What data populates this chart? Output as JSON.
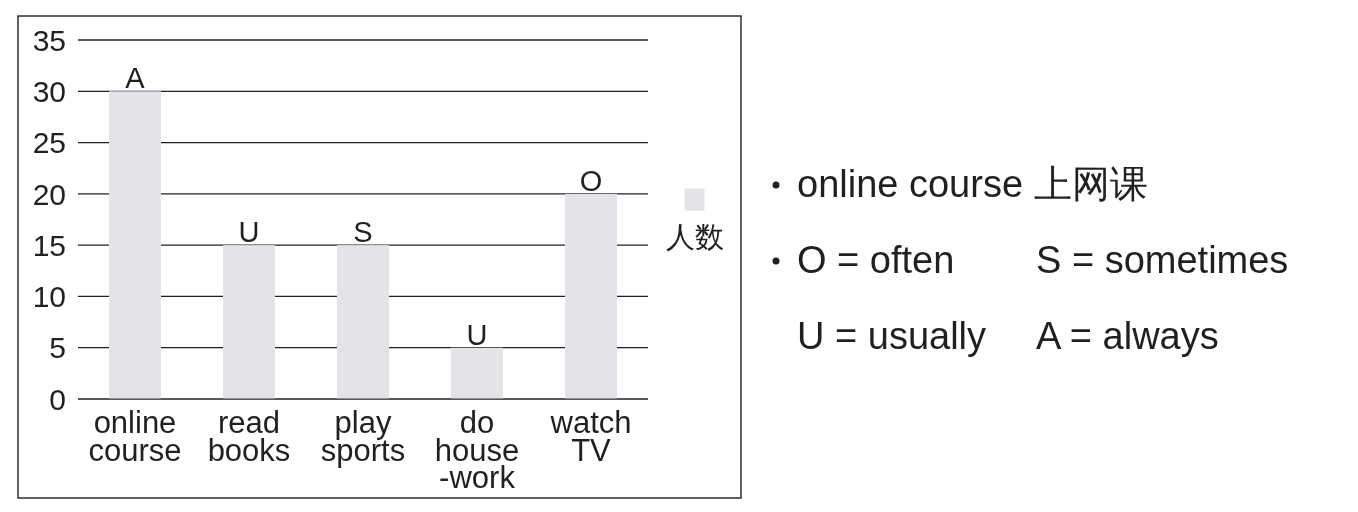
{
  "chart_data": {
    "type": "bar",
    "categories": [
      "online course",
      "read books",
      "play sports",
      "do house-work",
      "watch TV"
    ],
    "series": [
      {
        "name": "人数",
        "color": "#e2e4e8",
        "values": [
          30,
          15,
          15,
          5,
          20
        ],
        "value_labels": [
          "A",
          "U",
          "S",
          "U",
          "O"
        ]
      }
    ],
    "ylim": [
      0,
      35
    ],
    "yticks": [
      0,
      5,
      10,
      15,
      20,
      25,
      30,
      35
    ],
    "grid": "y",
    "legend": "right",
    "annotations": [
      "online course 上网课",
      "O = often",
      "S = sometimes",
      "U = usually",
      "A = always"
    ]
  }
}
